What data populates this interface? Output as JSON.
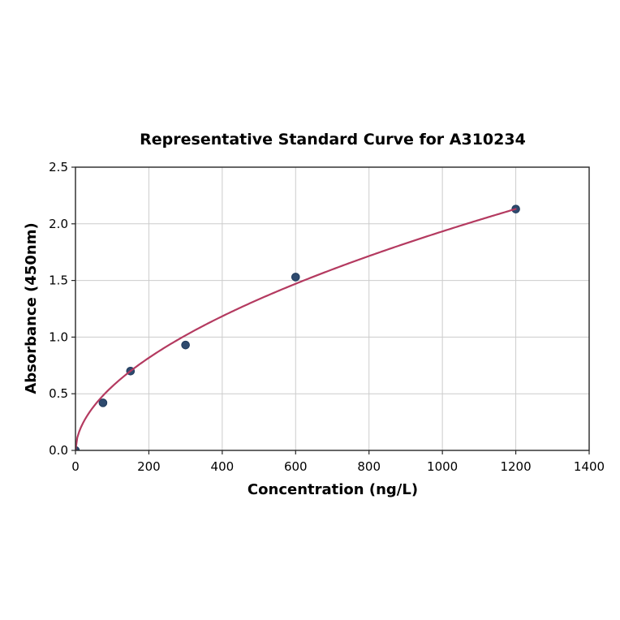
{
  "chart_data": {
    "type": "scatter",
    "title": "Representative Standard Curve for A310234",
    "xlabel": "Concentration (ng/L)",
    "ylabel": "Absorbance (450nm)",
    "xlim": [
      0,
      1400
    ],
    "ylim": [
      0,
      2.5
    ],
    "x_ticks": [
      0,
      200,
      400,
      600,
      800,
      1000,
      1200,
      1400
    ],
    "x_tick_labels": [
      "0",
      "200",
      "400",
      "600",
      "800",
      "1000",
      "1200",
      "1400"
    ],
    "y_ticks": [
      0,
      0.5,
      1.0,
      1.5,
      2.0,
      2.5
    ],
    "y_tick_labels": [
      "0.0",
      "0.5",
      "1.0",
      "1.5",
      "2.0",
      "2.5"
    ],
    "grid": true,
    "legend": null,
    "series": [
      {
        "name": "standard-points",
        "type": "scatter",
        "x": [
          0,
          75,
          150,
          300,
          600,
          1200
        ],
        "y": [
          0.0,
          0.42,
          0.7,
          0.93,
          1.53,
          2.13
        ]
      },
      {
        "name": "fit-curve",
        "type": "line",
        "model": "power",
        "a": 0.048,
        "b": 0.535,
        "x_range": [
          0,
          1200
        ]
      }
    ],
    "colors": {
      "curve": "#b43a60",
      "point_fill": "#2e4a6e",
      "point_edge": "#1f3a5c",
      "grid": "#cccccc",
      "axis": "#262626",
      "text": "#000000",
      "background": "#ffffff"
    }
  }
}
